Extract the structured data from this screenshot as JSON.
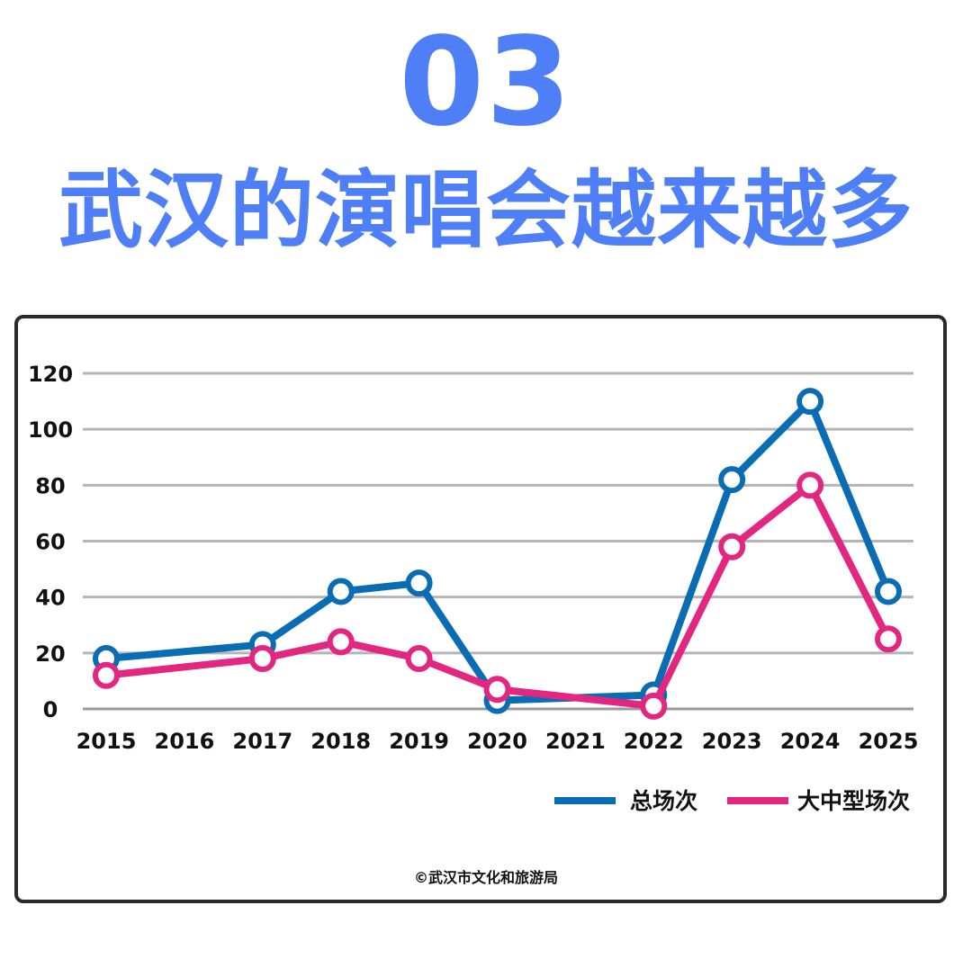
{
  "header": {
    "number": "03",
    "title": "武汉的演唱会越来越多"
  },
  "source": "©武汉市文化和旅游局",
  "colors": {
    "accent": "#4f7ff7",
    "series_total": "#0a6db3",
    "series_large": "#e3267f",
    "grid": "#b5b5b5"
  },
  "chart_data": {
    "type": "line",
    "x": [
      "2015",
      "2016",
      "2017",
      "2018",
      "2019",
      "2020",
      "2021",
      "2022",
      "2023",
      "2024",
      "2025"
    ],
    "ylim": [
      0,
      120
    ],
    "yticks": [
      "0",
      "20",
      "40",
      "60",
      "80",
      "100",
      "120"
    ],
    "grid": true,
    "legend_position": "bottom-right",
    "series": [
      {
        "name": "总场次",
        "color": "#0a6db3",
        "points": [
          {
            "x": "2015",
            "y": 18
          },
          {
            "x": "2017",
            "y": 23
          },
          {
            "x": "2018",
            "y": 42
          },
          {
            "x": "2019",
            "y": 45
          },
          {
            "x": "2020",
            "y": 3
          },
          {
            "x": "2022",
            "y": 5
          },
          {
            "x": "2023",
            "y": 82
          },
          {
            "x": "2024",
            "y": 110
          },
          {
            "x": "2025",
            "y": 42
          }
        ]
      },
      {
        "name": "大中型场次",
        "color": "#e3267f",
        "points": [
          {
            "x": "2015",
            "y": 12
          },
          {
            "x": "2017",
            "y": 18
          },
          {
            "x": "2018",
            "y": 24
          },
          {
            "x": "2019",
            "y": 18
          },
          {
            "x": "2020",
            "y": 7
          },
          {
            "x": "2022",
            "y": 1
          },
          {
            "x": "2023",
            "y": 58
          },
          {
            "x": "2024",
            "y": 80
          },
          {
            "x": "2025",
            "y": 25
          }
        ]
      }
    ]
  }
}
